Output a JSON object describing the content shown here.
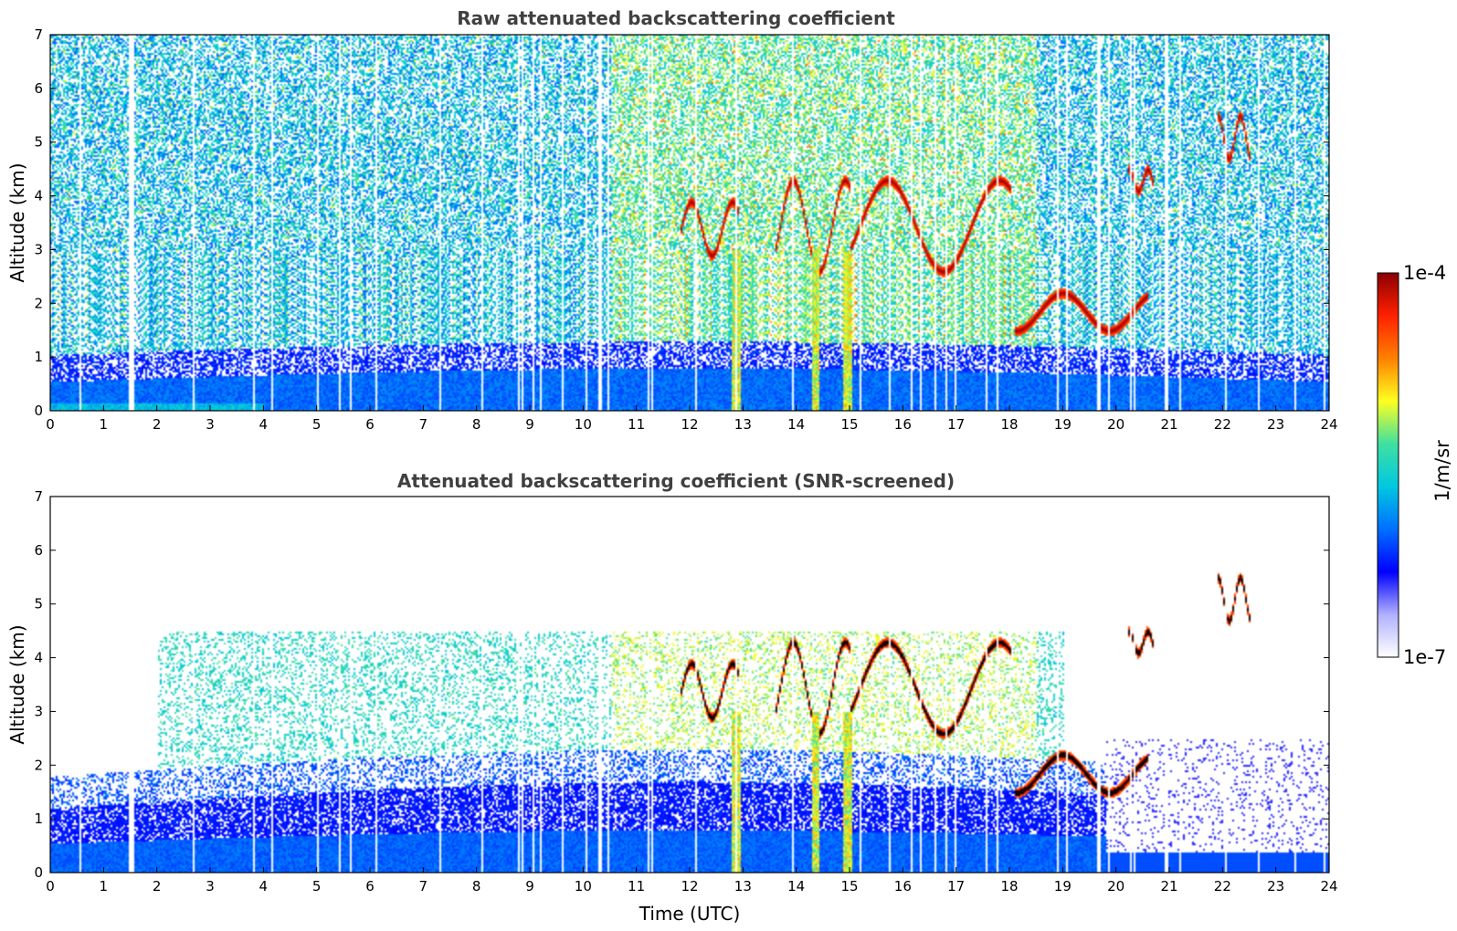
{
  "chart_data": [
    {
      "type": "heatmap",
      "title": "Raw attenuated backscattering coefficient",
      "xlabel": "",
      "ylabel": "Altitude (km)",
      "xlim": [
        0,
        24
      ],
      "ylim": [
        0,
        7
      ],
      "xticks": [
        0,
        1,
        2,
        3,
        4,
        5,
        6,
        7,
        8,
        9,
        10,
        11,
        12,
        13,
        14,
        15,
        16,
        17,
        18,
        19,
        20,
        21,
        22,
        23,
        24
      ],
      "yticks": [
        0,
        1,
        2,
        3,
        4,
        5,
        6,
        7
      ],
      "variant": "raw",
      "features": {
        "boundary_layer_top_km": 0.6,
        "data_gaps_utc": [
          1.45,
          1.55
        ],
        "cloud_layers": [
          {
            "time_utc": [
              11.8,
              12.9
            ],
            "altitude_km": [
              2.9,
              3.9
            ]
          },
          {
            "time_utc": [
              13.6,
              15.0
            ],
            "altitude_km": [
              2.6,
              4.3
            ]
          },
          {
            "time_utc": [
              15.0,
              18.0
            ],
            "altitude_km": [
              2.6,
              4.3
            ]
          },
          {
            "time_utc": [
              18.1,
              20.6
            ],
            "altitude_km": [
              1.5,
              2.2
            ]
          },
          {
            "time_utc": [
              20.2,
              20.7
            ],
            "altitude_km": [
              4.1,
              4.5
            ]
          },
          {
            "time_utc": [
              21.9,
              22.5
            ],
            "altitude_km": [
              4.7,
              5.5
            ]
          }
        ],
        "precipitation_streaks_utc": [
          12.85,
          14.35,
          14.95
        ]
      }
    },
    {
      "type": "heatmap",
      "title": "Attenuated backscattering coefficient (SNR-screened)",
      "xlabel": "Time (UTC)",
      "ylabel": "Altitude (km)",
      "xlim": [
        0,
        24
      ],
      "ylim": [
        0,
        7
      ],
      "xticks": [
        0,
        1,
        2,
        3,
        4,
        5,
        6,
        7,
        8,
        9,
        10,
        11,
        12,
        13,
        14,
        15,
        16,
        17,
        18,
        19,
        20,
        21,
        22,
        23,
        24
      ],
      "yticks": [
        0,
        1,
        2,
        3,
        4,
        5,
        6,
        7
      ],
      "variant": "screened",
      "features": {
        "boundary_layer_top_km": 1.8,
        "data_gaps_utc": [
          1.45,
          1.55
        ],
        "screened_noise_region_utc": [
          19.8,
          24
        ]
      }
    }
  ],
  "colorbar": {
    "label": "1/m/sr",
    "min_label": "1e-7",
    "max_label": "1e-4",
    "colormap": [
      "#ffffff",
      "#b0b0ff",
      "#0000ff",
      "#0070ff",
      "#00c8e0",
      "#40e0a0",
      "#ffff20",
      "#ff8000",
      "#ff2000",
      "#8b0000"
    ]
  }
}
